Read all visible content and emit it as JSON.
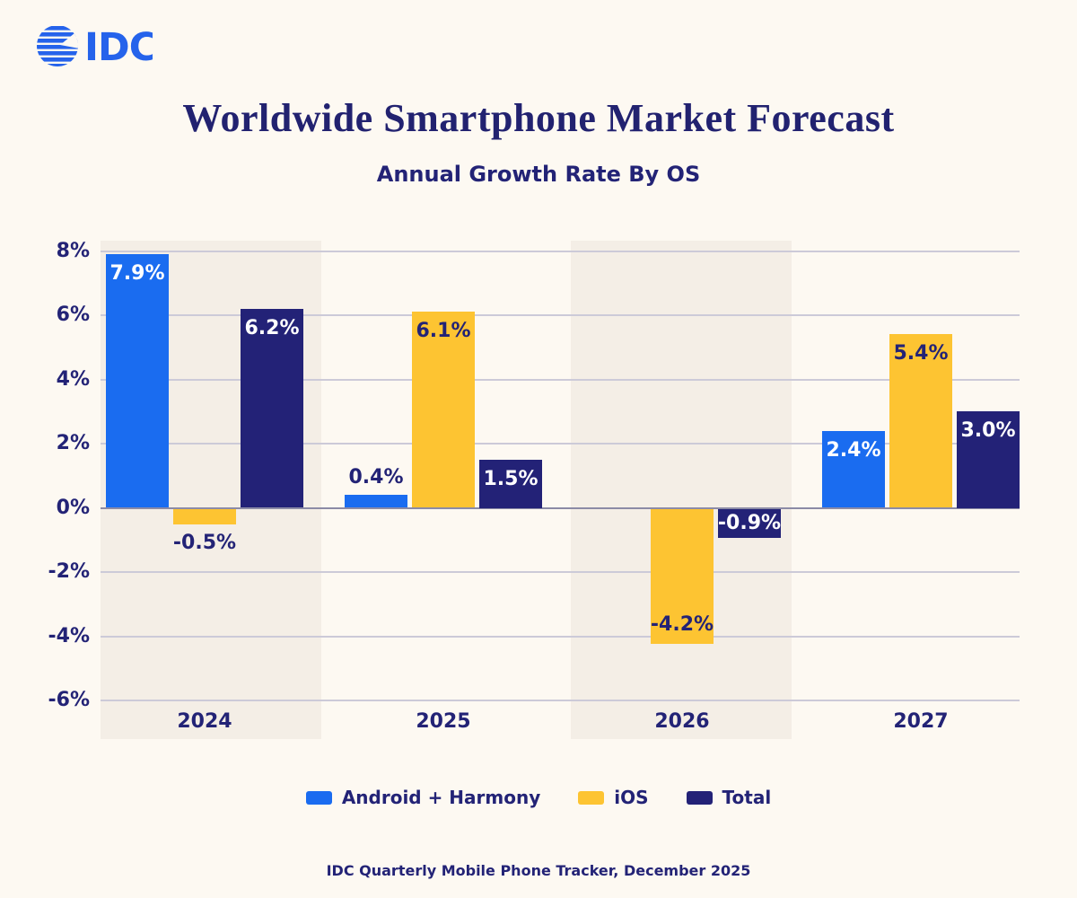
{
  "logo": {
    "text": "IDC",
    "color": "#2563EB"
  },
  "header": {
    "title": "Worldwide Smartphone Market Forecast",
    "subtitle": "Annual Growth Rate By OS"
  },
  "colors": {
    "background": "#FDF9F2",
    "band": "#F4EEE6",
    "android": "#1A6CF0",
    "ios": "#FDC432",
    "total": "#232277",
    "text": "#232376",
    "grid": "#CCCAD8",
    "zero_line": "#8C8BA6",
    "label_light": "#FFFFFF",
    "label_dark": "#232376"
  },
  "chart_data": {
    "type": "bar",
    "title": "Worldwide Smartphone Market Forecast",
    "subtitle": "Annual Growth Rate By OS",
    "categories": [
      "2024",
      "2025",
      "2026",
      "2027"
    ],
    "series": [
      {
        "name": "Android + Harmony",
        "color_key": "android",
        "values": [
          7.9,
          0.4,
          0.0,
          2.4
        ],
        "labels": [
          "7.9%",
          "0.4%",
          "",
          "2.4%"
        ],
        "label_placements": [
          "inside-top",
          "outside-above",
          "none",
          "inside-top"
        ],
        "label_colors": [
          "light",
          "dark",
          "none",
          "light"
        ]
      },
      {
        "name": "iOS",
        "color_key": "ios",
        "values": [
          -0.5,
          6.1,
          -4.2,
          5.4
        ],
        "labels": [
          "-0.5%",
          "6.1%",
          "-4.2%",
          "5.4%"
        ],
        "label_placements": [
          "outside-below",
          "inside-top",
          "inside-bottom",
          "inside-top"
        ],
        "label_colors": [
          "dark",
          "dark",
          "dark",
          "dark"
        ]
      },
      {
        "name": "Total",
        "color_key": "total",
        "values": [
          6.2,
          1.5,
          -0.9,
          3.0
        ],
        "labels": [
          "6.2%",
          "1.5%",
          "-0.9%",
          "3.0%"
        ],
        "label_placements": [
          "inside-top",
          "inside-top",
          "inside-middle",
          "inside-top"
        ],
        "label_colors": [
          "light",
          "light",
          "light",
          "light"
        ]
      }
    ],
    "y_ticks": [
      {
        "label": "8%",
        "value": 8
      },
      {
        "label": "6%",
        "value": 6
      },
      {
        "label": "4%",
        "value": 4
      },
      {
        "label": "2%",
        "value": 2
      },
      {
        "label": "0%",
        "value": 0
      },
      {
        "label": "-2%",
        "value": -2
      },
      {
        "label": "-4%",
        "value": -4
      },
      {
        "label": "-6%",
        "value": -6
      }
    ],
    "ylim": [
      -6,
      8
    ],
    "grid": "horizontal",
    "legend_position": "bottom",
    "highlighted_columns": [
      0,
      2
    ]
  },
  "legend": {
    "items": [
      {
        "label": "Android + Harmony",
        "color_key": "android"
      },
      {
        "label": "iOS",
        "color_key": "ios"
      },
      {
        "label": "Total",
        "color_key": "total"
      }
    ]
  },
  "footer": {
    "source": "IDC Quarterly Mobile Phone Tracker, December 2025"
  }
}
